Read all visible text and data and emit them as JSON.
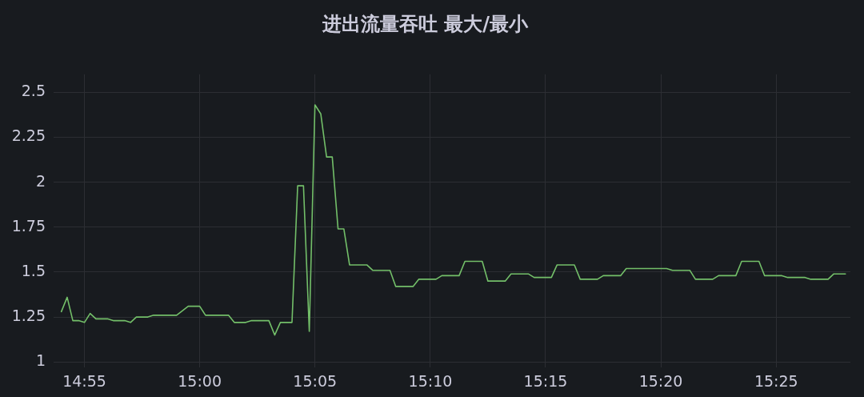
{
  "chart_data": {
    "type": "line",
    "title": "进出流量吞吐 最大/最小",
    "x": [
      14.9,
      14.9042,
      14.9083,
      14.9125,
      14.9167,
      14.9208,
      14.925,
      14.9333,
      14.9375,
      14.9458,
      14.95,
      14.9542,
      14.9625,
      14.9667,
      14.9833,
      14.9917,
      15.0,
      15.0042,
      15.0208,
      15.025,
      15.0333,
      15.0375,
      15.05,
      15.0542,
      15.0583,
      15.0667,
      15.0708,
      15.075,
      15.0792,
      15.0833,
      15.0875,
      15.0917,
      15.0958,
      15.1,
      15.1042,
      15.1083,
      15.1208,
      15.125,
      15.1375,
      15.1417,
      15.1542,
      15.1583,
      15.1708,
      15.175,
      15.1875,
      15.1917,
      15.2042,
      15.2083,
      15.2208,
      15.225,
      15.2375,
      15.2417,
      15.2542,
      15.2583,
      15.2708,
      15.275,
      15.2875,
      15.2917,
      15.3042,
      15.3083,
      15.3375,
      15.3417,
      15.3542,
      15.3583,
      15.3708,
      15.375,
      15.3875,
      15.3917,
      15.4042,
      15.4083,
      15.4208,
      15.425,
      15.4375,
      15.4417,
      15.4542,
      15.4583,
      15.4667
    ],
    "series": [
      {
        "color": "#73bf69",
        "values": [
          1.28,
          1.36,
          1.23,
          1.23,
          1.22,
          1.27,
          1.24,
          1.24,
          1.23,
          1.23,
          1.22,
          1.25,
          1.25,
          1.26,
          1.26,
          1.31,
          1.31,
          1.26,
          1.26,
          1.22,
          1.22,
          1.23,
          1.23,
          1.15,
          1.22,
          1.22,
          1.98,
          1.98,
          1.17,
          2.43,
          2.38,
          2.14,
          2.14,
          1.74,
          1.74,
          1.54,
          1.54,
          1.51,
          1.51,
          1.42,
          1.42,
          1.46,
          1.46,
          1.48,
          1.48,
          1.56,
          1.56,
          1.45,
          1.45,
          1.49,
          1.49,
          1.47,
          1.47,
          1.54,
          1.54,
          1.46,
          1.46,
          1.48,
          1.48,
          1.52,
          1.52,
          1.51,
          1.51,
          1.46,
          1.46,
          1.48,
          1.48,
          1.56,
          1.56,
          1.48,
          1.48,
          1.47,
          1.47,
          1.46,
          1.46,
          1.49,
          1.49
        ]
      }
    ],
    "xlim": [
      14.8944,
      15.4703
    ],
    "xticks": [
      {
        "value": 14.9167,
        "label": "14:55"
      },
      {
        "value": 15.0,
        "label": "15:00"
      },
      {
        "value": 15.0833,
        "label": "15:05"
      },
      {
        "value": 15.1667,
        "label": "15:10"
      },
      {
        "value": 15.25,
        "label": "15:15"
      },
      {
        "value": 15.3333,
        "label": "15:20"
      },
      {
        "value": 15.4167,
        "label": "15:25"
      }
    ],
    "ylim": [
      0.97,
      2.6
    ],
    "yticks": [
      1,
      1.25,
      1.5,
      1.75,
      2,
      2.25,
      2.5
    ],
    "grid": true,
    "marker": "none"
  }
}
